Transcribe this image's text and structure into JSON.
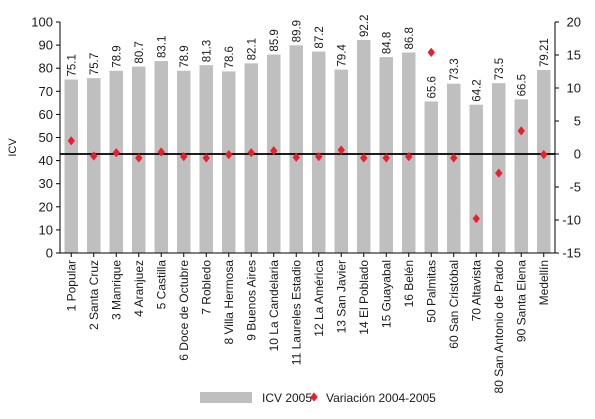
{
  "chart_data": {
    "type": "bar",
    "ylabel": "ICV",
    "ylim": [
      0,
      100
    ],
    "y2lim": [
      -15,
      20
    ],
    "y_ticks": [
      0,
      10,
      20,
      30,
      40,
      50,
      60,
      70,
      80,
      90,
      100
    ],
    "y2_ticks": [
      -15,
      -10,
      -5,
      0,
      5,
      10,
      15,
      20
    ],
    "grid": false,
    "legend_position": "bottom",
    "categories": [
      "1 Popular",
      "2 Santa Cruz",
      "3 Manrique",
      "4 Aranjuez",
      "5 Castilla",
      "6 Doce de Octubre",
      "7 Robledo",
      "8 Villa Hermosa",
      "9 Buenos Aires",
      "10 La Candelaria",
      "11 Laureles Estadio",
      "12 La América",
      "13 San Javier",
      "14 El Poblado",
      "15 Guayabal",
      "16 Belén",
      "50 Palmitas",
      "60 San Cristóbal",
      "70 Altavista",
      "80 San Antonio de Prado",
      "90 Santa Elena",
      "Medellín"
    ],
    "series": [
      {
        "name": "ICV 2005",
        "axis": "left",
        "color": "#bfbfbf",
        "values": [
          75.1,
          75.7,
          78.9,
          80.7,
          83.1,
          78.9,
          81.3,
          78.6,
          82.1,
          85.9,
          89.9,
          87.2,
          79.4,
          92.2,
          84.8,
          86.8,
          65.6,
          73.3,
          64.2,
          73.5,
          66.5,
          79.21
        ],
        "labels": [
          "75.1",
          "75.7",
          "78.9",
          "80.7",
          "83.1",
          "78.9",
          "81.3",
          "78.6",
          "82.1",
          "85.9",
          "89.9",
          "87.2",
          "79.4",
          "92.2",
          "84.8",
          "86.8",
          "65.6",
          "73.3",
          "64.2",
          "73.5",
          "66.5",
          "79.21"
        ]
      },
      {
        "name": "Variación 2004-2005",
        "axis": "right",
        "color": "#e8202a",
        "values": [
          2.0,
          -0.3,
          0.2,
          -0.6,
          0.3,
          -0.4,
          -0.6,
          -0.1,
          0.2,
          0.5,
          -0.5,
          -0.4,
          0.6,
          -0.6,
          -0.6,
          -0.4,
          15.4,
          -0.6,
          -9.8,
          -2.9,
          3.5,
          -0.1
        ]
      }
    ]
  }
}
